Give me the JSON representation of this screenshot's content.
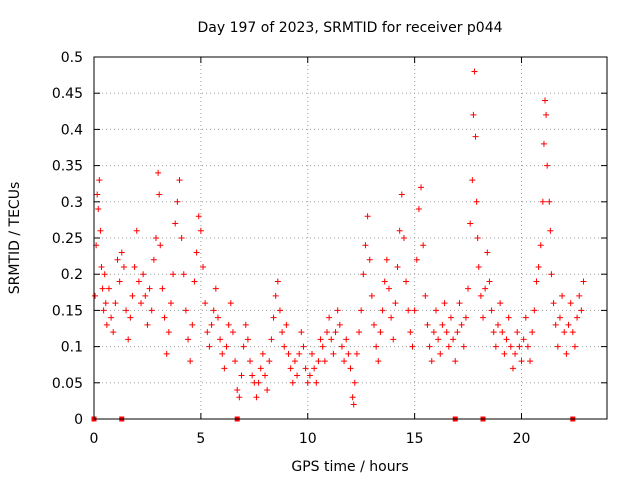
{
  "chart_data": {
    "type": "scatter",
    "title": "Day 197 of 2023, SRMTID for receiver p044",
    "xlabel": "GPS time / hours",
    "ylabel": "SRMTID / TECUs",
    "xlim": [
      0,
      24
    ],
    "ylim": [
      0,
      0.5
    ],
    "x_ticks": [
      0,
      5,
      10,
      15,
      20
    ],
    "x_tick_labels": [
      "0",
      "5",
      "10",
      "15",
      "20"
    ],
    "y_ticks": [
      0,
      0.05,
      0.1,
      0.15,
      0.2,
      0.25,
      0.3,
      0.35,
      0.4,
      0.45,
      0.5
    ],
    "y_tick_labels": [
      "0",
      "0.05",
      "0.1",
      "0.15",
      "0.2",
      "0.25",
      "0.3",
      "0.35",
      "0.4",
      "0.45",
      "0.5"
    ],
    "grid": true,
    "marker": "plus",
    "color": "#ff0000",
    "zero_markers_x": [
      0,
      1.3,
      6.7,
      16.9,
      18.2,
      22.4
    ],
    "series": [
      {
        "name": "SRMTID",
        "points": [
          [
            0.05,
            0.17
          ],
          [
            0.1,
            0.24
          ],
          [
            0.15,
            0.31
          ],
          [
            0.2,
            0.29
          ],
          [
            0.25,
            0.33
          ],
          [
            0.3,
            0.26
          ],
          [
            0.35,
            0.21
          ],
          [
            0.4,
            0.18
          ],
          [
            0.45,
            0.15
          ],
          [
            0.5,
            0.2
          ],
          [
            0.55,
            0.16
          ],
          [
            0.6,
            0.13
          ],
          [
            0.7,
            0.18
          ],
          [
            0.8,
            0.14
          ],
          [
            0.9,
            0.12
          ],
          [
            1.0,
            0.16
          ],
          [
            1.1,
            0.22
          ],
          [
            1.2,
            0.19
          ],
          [
            1.3,
            0.23
          ],
          [
            1.4,
            0.21
          ],
          [
            1.5,
            0.15
          ],
          [
            1.6,
            0.11
          ],
          [
            1.7,
            0.14
          ],
          [
            1.8,
            0.17
          ],
          [
            1.9,
            0.21
          ],
          [
            2.0,
            0.26
          ],
          [
            2.1,
            0.19
          ],
          [
            2.2,
            0.16
          ],
          [
            2.3,
            0.2
          ],
          [
            2.4,
            0.17
          ],
          [
            2.5,
            0.13
          ],
          [
            2.6,
            0.18
          ],
          [
            2.7,
            0.15
          ],
          [
            2.8,
            0.22
          ],
          [
            2.9,
            0.25
          ],
          [
            3.0,
            0.34
          ],
          [
            3.05,
            0.31
          ],
          [
            3.1,
            0.24
          ],
          [
            3.2,
            0.18
          ],
          [
            3.3,
            0.14
          ],
          [
            3.4,
            0.09
          ],
          [
            3.5,
            0.12
          ],
          [
            3.6,
            0.16
          ],
          [
            3.7,
            0.2
          ],
          [
            3.8,
            0.27
          ],
          [
            3.9,
            0.3
          ],
          [
            4.0,
            0.33
          ],
          [
            4.1,
            0.25
          ],
          [
            4.2,
            0.2
          ],
          [
            4.3,
            0.15
          ],
          [
            4.4,
            0.11
          ],
          [
            4.5,
            0.08
          ],
          [
            4.6,
            0.13
          ],
          [
            4.7,
            0.19
          ],
          [
            4.8,
            0.23
          ],
          [
            4.9,
            0.28
          ],
          [
            5.0,
            0.26
          ],
          [
            5.1,
            0.21
          ],
          [
            5.2,
            0.16
          ],
          [
            5.3,
            0.12
          ],
          [
            5.4,
            0.1
          ],
          [
            5.5,
            0.13
          ],
          [
            5.6,
            0.15
          ],
          [
            5.7,
            0.18
          ],
          [
            5.8,
            0.14
          ],
          [
            5.9,
            0.11
          ],
          [
            6.0,
            0.09
          ],
          [
            6.1,
            0.07
          ],
          [
            6.2,
            0.1
          ],
          [
            6.3,
            0.13
          ],
          [
            6.4,
            0.16
          ],
          [
            6.5,
            0.12
          ],
          [
            6.6,
            0.08
          ],
          [
            6.7,
            0.04
          ],
          [
            6.8,
            0.03
          ],
          [
            6.9,
            0.06
          ],
          [
            7.0,
            0.1
          ],
          [
            7.1,
            0.13
          ],
          [
            7.2,
            0.11
          ],
          [
            7.3,
            0.08
          ],
          [
            7.4,
            0.06
          ],
          [
            7.5,
            0.05
          ],
          [
            7.6,
            0.03
          ],
          [
            7.7,
            0.05
          ],
          [
            7.8,
            0.07
          ],
          [
            7.9,
            0.09
          ],
          [
            8.0,
            0.06
          ],
          [
            8.1,
            0.04
          ],
          [
            8.2,
            0.08
          ],
          [
            8.3,
            0.11
          ],
          [
            8.4,
            0.14
          ],
          [
            8.5,
            0.17
          ],
          [
            8.6,
            0.19
          ],
          [
            8.7,
            0.15
          ],
          [
            8.8,
            0.12
          ],
          [
            8.9,
            0.1
          ],
          [
            9.0,
            0.13
          ],
          [
            9.1,
            0.09
          ],
          [
            9.2,
            0.07
          ],
          [
            9.3,
            0.05
          ],
          [
            9.4,
            0.08
          ],
          [
            9.5,
            0.06
          ],
          [
            9.6,
            0.09
          ],
          [
            9.7,
            0.12
          ],
          [
            9.8,
            0.1
          ],
          [
            9.9,
            0.07
          ],
          [
            10.0,
            0.05
          ],
          [
            10.1,
            0.06
          ],
          [
            10.2,
            0.09
          ],
          [
            10.3,
            0.07
          ],
          [
            10.4,
            0.05
          ],
          [
            10.5,
            0.08
          ],
          [
            10.6,
            0.11
          ],
          [
            10.7,
            0.1
          ],
          [
            10.8,
            0.08
          ],
          [
            10.9,
            0.12
          ],
          [
            11.0,
            0.14
          ],
          [
            11.1,
            0.11
          ],
          [
            11.2,
            0.09
          ],
          [
            11.3,
            0.12
          ],
          [
            11.4,
            0.15
          ],
          [
            11.5,
            0.13
          ],
          [
            11.6,
            0.1
          ],
          [
            11.7,
            0.08
          ],
          [
            11.8,
            0.11
          ],
          [
            11.9,
            0.09
          ],
          [
            12.0,
            0.07
          ],
          [
            12.1,
            0.03
          ],
          [
            12.15,
            0.02
          ],
          [
            12.2,
            0.05
          ],
          [
            12.3,
            0.09
          ],
          [
            12.4,
            0.12
          ],
          [
            12.5,
            0.15
          ],
          [
            12.6,
            0.2
          ],
          [
            12.7,
            0.24
          ],
          [
            12.8,
            0.28
          ],
          [
            12.9,
            0.22
          ],
          [
            13.0,
            0.17
          ],
          [
            13.1,
            0.13
          ],
          [
            13.2,
            0.1
          ],
          [
            13.3,
            0.08
          ],
          [
            13.4,
            0.12
          ],
          [
            13.5,
            0.15
          ],
          [
            13.6,
            0.19
          ],
          [
            13.7,
            0.22
          ],
          [
            13.8,
            0.18
          ],
          [
            13.9,
            0.14
          ],
          [
            14.0,
            0.11
          ],
          [
            14.1,
            0.16
          ],
          [
            14.2,
            0.21
          ],
          [
            14.3,
            0.26
          ],
          [
            14.4,
            0.31
          ],
          [
            14.5,
            0.25
          ],
          [
            14.6,
            0.19
          ],
          [
            14.7,
            0.15
          ],
          [
            14.8,
            0.12
          ],
          [
            14.9,
            0.1
          ],
          [
            15.0,
            0.15
          ],
          [
            15.1,
            0.22
          ],
          [
            15.2,
            0.29
          ],
          [
            15.3,
            0.32
          ],
          [
            15.4,
            0.24
          ],
          [
            15.5,
            0.17
          ],
          [
            15.6,
            0.13
          ],
          [
            15.7,
            0.1
          ],
          [
            15.8,
            0.08
          ],
          [
            15.9,
            0.12
          ],
          [
            16.0,
            0.15
          ],
          [
            16.1,
            0.11
          ],
          [
            16.2,
            0.09
          ],
          [
            16.3,
            0.13
          ],
          [
            16.4,
            0.16
          ],
          [
            16.5,
            0.12
          ],
          [
            16.6,
            0.1
          ],
          [
            16.7,
            0.14
          ],
          [
            16.8,
            0.11
          ],
          [
            16.9,
            0.08
          ],
          [
            17.0,
            0.12
          ],
          [
            17.1,
            0.16
          ],
          [
            17.2,
            0.13
          ],
          [
            17.3,
            0.1
          ],
          [
            17.4,
            0.14
          ],
          [
            17.5,
            0.18
          ],
          [
            17.6,
            0.27
          ],
          [
            17.7,
            0.33
          ],
          [
            17.75,
            0.42
          ],
          [
            17.8,
            0.48
          ],
          [
            17.85,
            0.39
          ],
          [
            17.9,
            0.3
          ],
          [
            17.95,
            0.25
          ],
          [
            18.0,
            0.21
          ],
          [
            18.1,
            0.17
          ],
          [
            18.2,
            0.14
          ],
          [
            18.3,
            0.18
          ],
          [
            18.4,
            0.23
          ],
          [
            18.5,
            0.19
          ],
          [
            18.6,
            0.15
          ],
          [
            18.7,
            0.12
          ],
          [
            18.8,
            0.1
          ],
          [
            18.9,
            0.13
          ],
          [
            19.0,
            0.16
          ],
          [
            19.1,
            0.12
          ],
          [
            19.2,
            0.09
          ],
          [
            19.3,
            0.11
          ],
          [
            19.4,
            0.14
          ],
          [
            19.5,
            0.1
          ],
          [
            19.6,
            0.07
          ],
          [
            19.7,
            0.09
          ],
          [
            19.8,
            0.12
          ],
          [
            19.9,
            0.1
          ],
          [
            20.0,
            0.08
          ],
          [
            20.1,
            0.11
          ],
          [
            20.2,
            0.14
          ],
          [
            20.3,
            0.1
          ],
          [
            20.4,
            0.08
          ],
          [
            20.5,
            0.12
          ],
          [
            20.6,
            0.15
          ],
          [
            20.7,
            0.19
          ],
          [
            20.8,
            0.21
          ],
          [
            20.9,
            0.24
          ],
          [
            21.0,
            0.3
          ],
          [
            21.05,
            0.38
          ],
          [
            21.1,
            0.44
          ],
          [
            21.15,
            0.42
          ],
          [
            21.2,
            0.35
          ],
          [
            21.3,
            0.3
          ],
          [
            21.35,
            0.26
          ],
          [
            21.4,
            0.2
          ],
          [
            21.5,
            0.16
          ],
          [
            21.6,
            0.13
          ],
          [
            21.7,
            0.1
          ],
          [
            21.8,
            0.14
          ],
          [
            21.9,
            0.17
          ],
          [
            22.0,
            0.12
          ],
          [
            22.1,
            0.09
          ],
          [
            22.2,
            0.13
          ],
          [
            22.3,
            0.16
          ],
          [
            22.4,
            0.12
          ],
          [
            22.5,
            0.1
          ],
          [
            22.6,
            0.14
          ],
          [
            22.7,
            0.17
          ],
          [
            22.8,
            0.15
          ],
          [
            22.9,
            0.19
          ]
        ]
      }
    ]
  }
}
